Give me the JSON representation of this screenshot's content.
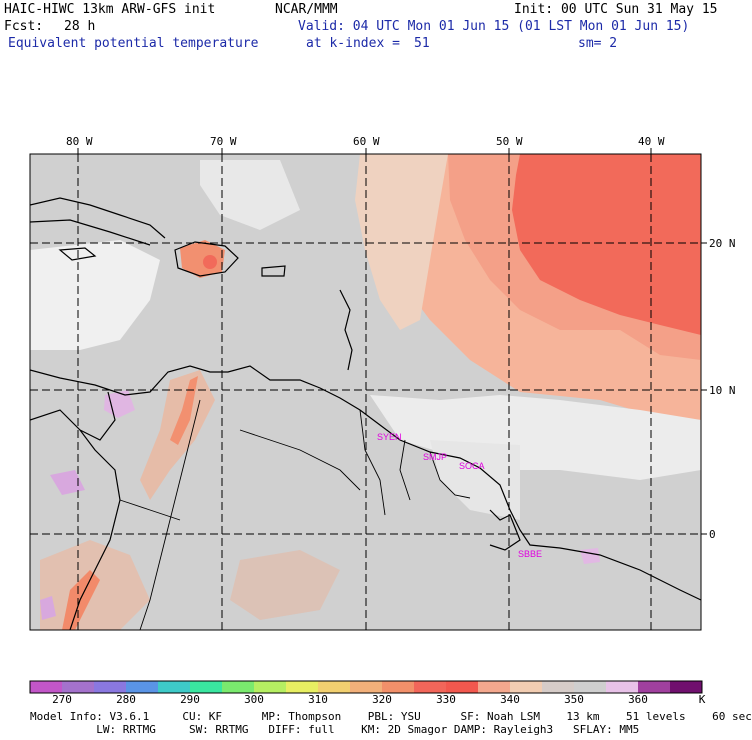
{
  "header": {
    "model": "HAIC-HIWC 13km ARW-GFS init",
    "org": "NCAR/MMM",
    "init": "Init: 00 UTC Sun 31 May 15",
    "fcst_label": "Fcst:",
    "fcst_value": "28 h",
    "valid": "Valid: 04 UTC Mon 01 Jun 15 (01 LST Mon 01 Jun 15)",
    "field": "Equivalent potential temperature",
    "level": "at k-index =",
    "level_value": "51",
    "smoothing": "sm= 2"
  },
  "map": {
    "lon_labels": [
      "80 W",
      "70 W",
      "60 W",
      "50 W",
      "40 W"
    ],
    "lat_labels": [
      "20 N",
      "10 N",
      "0"
    ],
    "stations": [
      "SYEN",
      "SMJP",
      "SOCA",
      "SBBE"
    ],
    "colors": {
      "background_field": "#d0d0d0",
      "warm_field": "#f4a68a",
      "hot_field": "#f26a5a",
      "cool_field": "#f2f2f2",
      "coastline": "#000000",
      "station_label": "#e000e0",
      "grid": "#000000"
    }
  },
  "colorbar": {
    "colors": [
      "#c256c8",
      "#a472cc",
      "#8a78e0",
      "#5a94e6",
      "#3ecac8",
      "#3ae6a0",
      "#7aea6e",
      "#b6ef62",
      "#e8ef62",
      "#f2d070",
      "#f2b07a",
      "#f2906a",
      "#f2665a",
      "#f2584e",
      "#f4a88e",
      "#f2cdb2",
      "#d6ccc8",
      "#cfcfcf",
      "#e8c2e8",
      "#a0409e",
      "#70106e"
    ],
    "labels": [
      "270",
      "280",
      "290",
      "300",
      "310",
      "320",
      "330",
      "340",
      "350",
      "360"
    ],
    "unit": "K"
  },
  "footer": {
    "line1": "Model Info: V3.6.1     CU: KF      MP: Thompson    PBL: YSU      SF: Noah LSM    13 km    51 levels    60 sec",
    "line2": "          LW: RRTMG     SW: RRTMG   DIFF: full    KM: 2D Smagor DAMP: Rayleigh3   SFLAY: MM5"
  }
}
